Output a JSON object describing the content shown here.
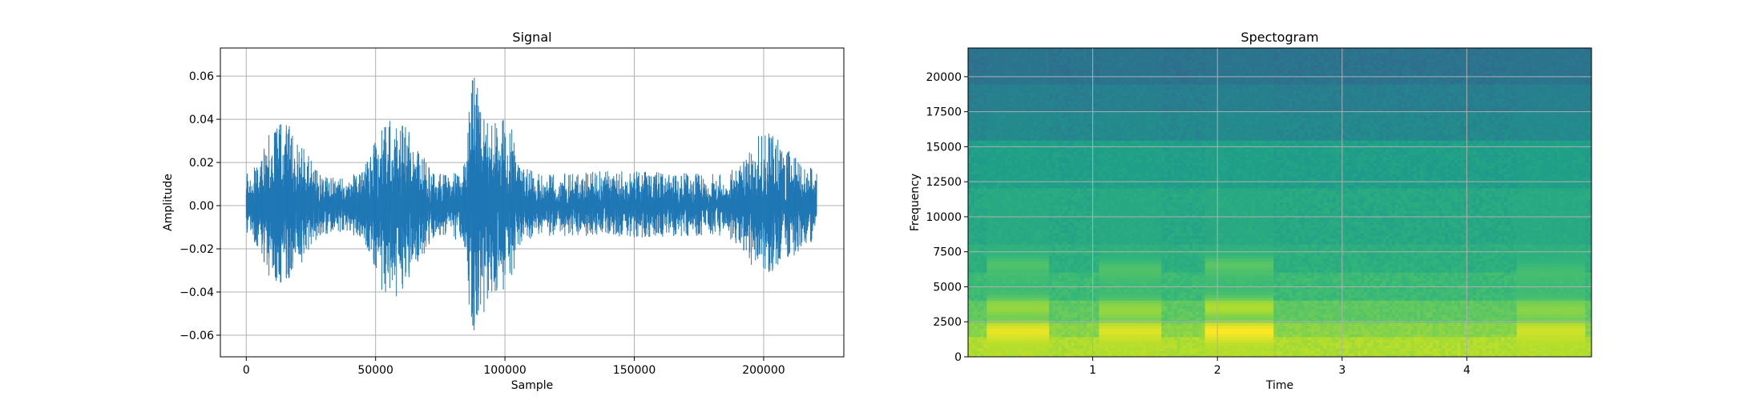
{
  "chart_data": [
    {
      "type": "line",
      "title": "Signal",
      "xlabel": "Sample",
      "ylabel": "Amplitude",
      "xlim": [
        -10000,
        231000
      ],
      "ylim": [
        -0.07,
        0.073
      ],
      "grid": true,
      "x_ticks": [
        0,
        50000,
        100000,
        150000,
        200000
      ],
      "x_tick_labels": [
        "0",
        "50000",
        "100000",
        "150000",
        "200000"
      ],
      "y_ticks": [
        -0.06,
        -0.04,
        -0.02,
        0.0,
        0.02,
        0.04,
        0.06
      ],
      "y_tick_labels": [
        "−0.06",
        "−0.04",
        "−0.02",
        "0.00",
        "0.02",
        "0.04",
        "0.06"
      ],
      "color": "#1f77b4",
      "x_range": [
        0,
        220500
      ],
      "envelope": {
        "x": [
          0,
          5000,
          8000,
          12000,
          15000,
          20000,
          25000,
          28000,
          35000,
          45000,
          48000,
          52000,
          55000,
          60000,
          65000,
          70000,
          72000,
          78000,
          85000,
          86000,
          88000,
          90000,
          95000,
          100000,
          104000,
          106000,
          115000,
          130000,
          150000,
          170000,
          185000,
          192000,
          195000,
          200000,
          205000,
          210000,
          215000,
          220500
        ],
        "upper": [
          0.015,
          0.02,
          0.032,
          0.036,
          0.041,
          0.03,
          0.022,
          0.015,
          0.013,
          0.016,
          0.025,
          0.035,
          0.043,
          0.04,
          0.03,
          0.02,
          0.016,
          0.014,
          0.02,
          0.045,
          0.068,
          0.05,
          0.04,
          0.046,
          0.03,
          0.018,
          0.015,
          0.016,
          0.016,
          0.015,
          0.015,
          0.02,
          0.027,
          0.036,
          0.032,
          0.026,
          0.02,
          0.016
        ],
        "lower": [
          -0.012,
          -0.02,
          -0.032,
          -0.037,
          -0.036,
          -0.03,
          -0.02,
          -0.014,
          -0.012,
          -0.015,
          -0.025,
          -0.038,
          -0.045,
          -0.04,
          -0.03,
          -0.02,
          -0.016,
          -0.013,
          -0.02,
          -0.05,
          -0.062,
          -0.052,
          -0.045,
          -0.04,
          -0.03,
          -0.017,
          -0.014,
          -0.014,
          -0.015,
          -0.014,
          -0.014,
          -0.02,
          -0.03,
          -0.032,
          -0.03,
          -0.025,
          -0.02,
          -0.015
        ]
      }
    },
    {
      "type": "heatmap",
      "title": "Spectogram",
      "xlabel": "Time",
      "ylabel": "Frequency",
      "xlim": [
        0.0,
        5.0
      ],
      "ylim": [
        0,
        22050
      ],
      "grid": true,
      "x_ticks": [
        1,
        2,
        3,
        4
      ],
      "x_tick_labels": [
        "1",
        "2",
        "3",
        "4"
      ],
      "y_ticks": [
        0,
        2500,
        5000,
        7500,
        10000,
        12500,
        15000,
        17500,
        20000
      ],
      "y_tick_labels": [
        "0",
        "2500",
        "5000",
        "7500",
        "10000",
        "12500",
        "15000",
        "17500",
        "20000"
      ],
      "colormap": "viridis",
      "frequency_bands": [
        {
          "f_min": 0,
          "f_max": 1500,
          "level": 0.88
        },
        {
          "f_min": 1500,
          "f_max": 2500,
          "level": 0.82
        },
        {
          "f_min": 2500,
          "f_max": 4000,
          "level": 0.75
        },
        {
          "f_min": 4000,
          "f_max": 6000,
          "level": 0.68
        },
        {
          "f_min": 6000,
          "f_max": 8000,
          "level": 0.63
        },
        {
          "f_min": 8000,
          "f_max": 12000,
          "level": 0.6
        },
        {
          "f_min": 12000,
          "f_max": 15500,
          "level": 0.56
        },
        {
          "f_min": 15500,
          "f_max": 17500,
          "level": 0.47
        },
        {
          "f_min": 17500,
          "f_max": 19500,
          "level": 0.43
        },
        {
          "f_min": 19500,
          "f_max": 22050,
          "level": 0.38
        }
      ],
      "energy_segments": [
        {
          "t_start": 0.15,
          "t_end": 0.65,
          "f_center": 1800,
          "level": 0.97
        },
        {
          "t_start": 0.15,
          "t_end": 0.65,
          "f_center": 3500,
          "level": 0.84
        },
        {
          "t_start": 0.15,
          "t_end": 0.65,
          "f_center": 6500,
          "level": 0.72
        },
        {
          "t_start": 1.05,
          "t_end": 1.55,
          "f_center": 1800,
          "level": 0.95
        },
        {
          "t_start": 1.05,
          "t_end": 1.55,
          "f_center": 3300,
          "level": 0.84
        },
        {
          "t_start": 1.05,
          "t_end": 1.55,
          "f_center": 6200,
          "level": 0.72
        },
        {
          "t_start": 1.9,
          "t_end": 2.45,
          "f_center": 1800,
          "level": 1.0
        },
        {
          "t_start": 1.9,
          "t_end": 2.45,
          "f_center": 3500,
          "level": 0.88
        },
        {
          "t_start": 1.9,
          "t_end": 2.45,
          "f_center": 6500,
          "level": 0.74
        },
        {
          "t_start": 4.4,
          "t_end": 4.95,
          "f_center": 1800,
          "level": 0.93
        },
        {
          "t_start": 4.4,
          "t_end": 4.95,
          "f_center": 3300,
          "level": 0.82
        },
        {
          "t_start": 4.4,
          "t_end": 4.95,
          "f_center": 6000,
          "level": 0.7
        }
      ]
    }
  ]
}
